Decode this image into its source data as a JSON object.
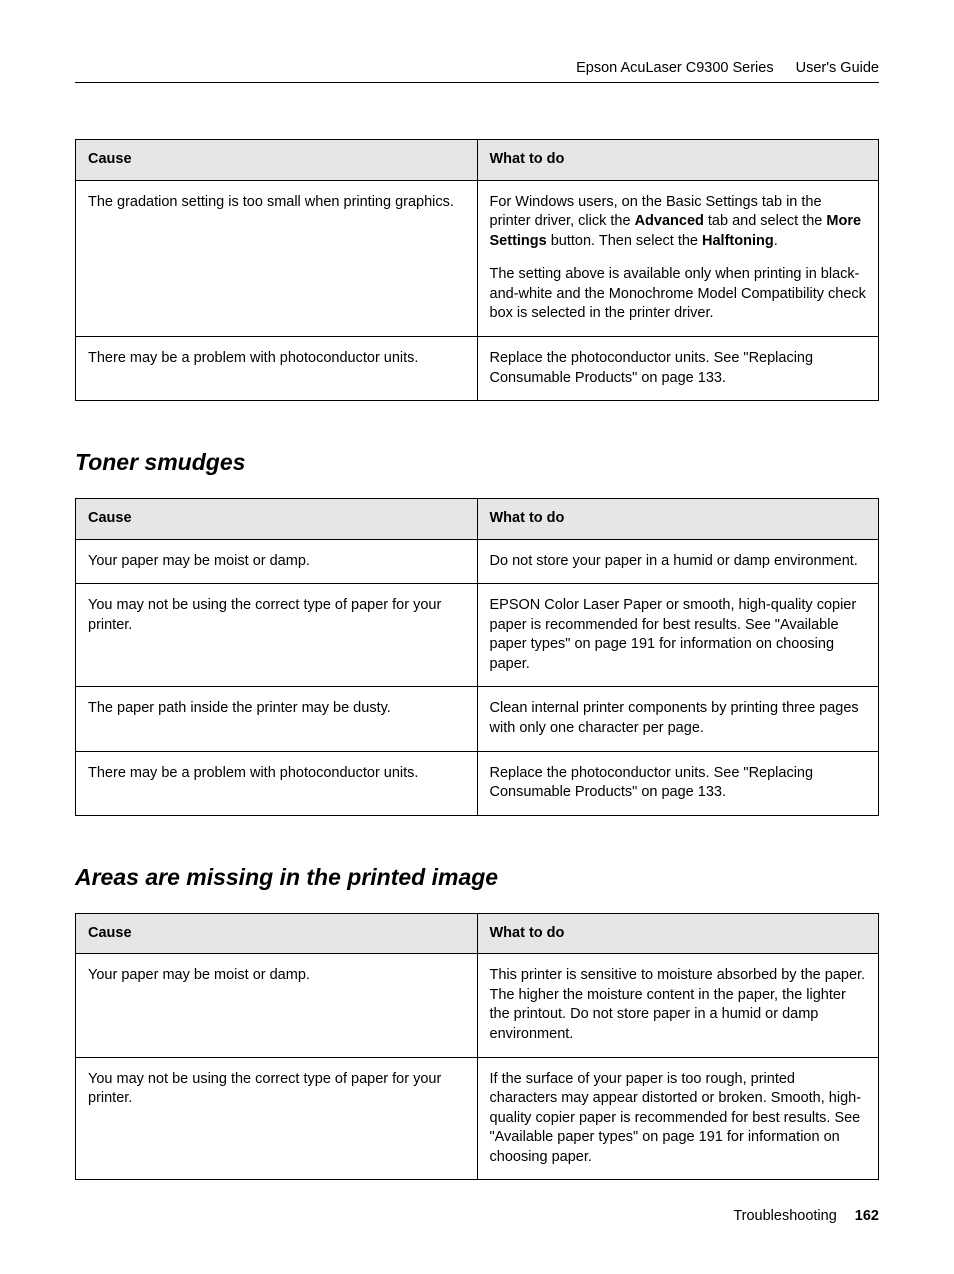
{
  "header": {
    "product": "Epson AcuLaser C9300 Series",
    "guide": "User's Guide"
  },
  "table1": {
    "headers": {
      "cause": "Cause",
      "do": "What to do"
    },
    "rows": [
      {
        "cause": "The gradation setting is too small when printing graphics.",
        "do_p1_pre": "For Windows users, on the Basic Settings tab in the printer driver, click the ",
        "do_p1_b1": "Advanced",
        "do_p1_mid": " tab and select the ",
        "do_p1_b2": "More Settings",
        "do_p1_mid2": " button. Then select the ",
        "do_p1_b3": "Halftoning",
        "do_p1_post": ".",
        "do_p2": "The setting above is available only when printing in black-and-white and the Monochrome Model Compatibility check box is selected in the printer driver."
      },
      {
        "cause": "There may be a problem with photoconductor units.",
        "do": "Replace the photoconductor units. See \"Replacing Consumable Products\" on page 133."
      }
    ]
  },
  "section2": {
    "title": "Toner smudges"
  },
  "table2": {
    "headers": {
      "cause": "Cause",
      "do": "What to do"
    },
    "rows": [
      {
        "cause": "Your paper may be moist or damp.",
        "do": "Do not store your paper in a humid or damp environment."
      },
      {
        "cause": "You may not be using the correct type of paper for your printer.",
        "do": "EPSON Color Laser Paper or smooth, high-quality copier paper is recommended for best results. See \"Available paper types\" on page 191 for information on choosing paper."
      },
      {
        "cause": "The paper path inside the printer may be dusty.",
        "do": "Clean internal printer components by printing three pages with only one character per page."
      },
      {
        "cause": "There may be a problem with photoconductor units.",
        "do": "Replace the photoconductor units. See \"Replacing Consumable Products\" on page 133."
      }
    ]
  },
  "section3": {
    "title": "Areas are missing in the printed image"
  },
  "table3": {
    "headers": {
      "cause": "Cause",
      "do": "What to do"
    },
    "rows": [
      {
        "cause": "Your paper may be moist or damp.",
        "do": "This printer is sensitive to moisture absorbed by the paper. The higher the moisture content in the paper, the lighter the printout. Do not store paper in a humid or damp environment."
      },
      {
        "cause": "You may not be using the correct type of paper for your printer.",
        "do": "If the surface of your paper is too rough, printed characters may appear distorted or broken. Smooth, high-quality copier paper is recommended for best results. See \"Available paper types\" on page 191 for information on choosing paper."
      }
    ]
  },
  "footer": {
    "section": "Troubleshooting",
    "page": "162"
  }
}
